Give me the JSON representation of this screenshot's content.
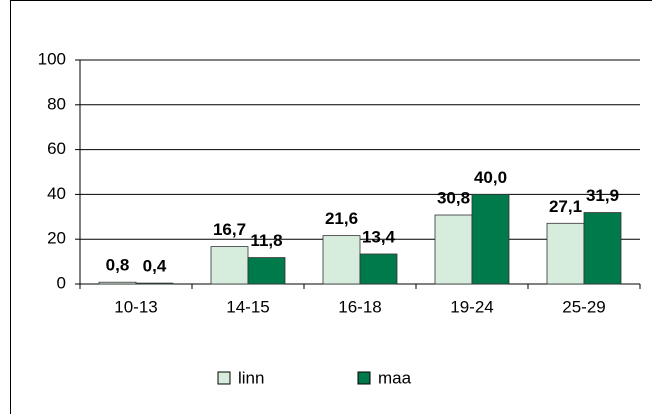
{
  "chart_data": {
    "type": "bar",
    "categories": [
      "10-13",
      "14-15",
      "16-18",
      "19-24",
      "25-29"
    ],
    "series": [
      {
        "name": "linn",
        "color": "#d6ecdc",
        "values": [
          0.8,
          16.7,
          21.6,
          30.8,
          27.1
        ],
        "value_labels": [
          "0,8",
          "16,7",
          "21,6",
          "30,8",
          "27,1"
        ]
      },
      {
        "name": "maa",
        "color": "#007a4b",
        "values": [
          0.4,
          11.8,
          13.4,
          40.0,
          31.9
        ],
        "value_labels": [
          "0,4",
          "11,8",
          "13,4",
          "40,0",
          "31,9"
        ]
      }
    ],
    "ylim": [
      0,
      100
    ],
    "yticks": [
      0,
      20,
      40,
      60,
      80,
      100
    ],
    "grid": true,
    "legend": "bottom"
  }
}
